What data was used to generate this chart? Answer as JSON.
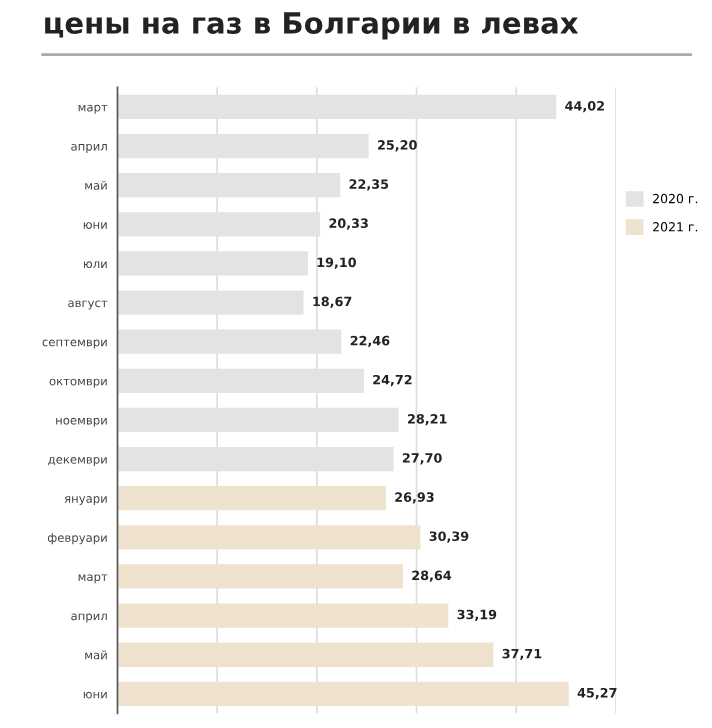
{
  "chart_data": {
    "type": "bar",
    "orientation": "horizontal",
    "title": "цены на газ в Болгарии в левах",
    "categories": [
      "март",
      "април",
      "май",
      "юни",
      "юли",
      "август",
      "септември",
      "октомври",
      "ноември",
      "декември",
      "януари",
      "февруари",
      "март",
      "април",
      "май",
      "юни"
    ],
    "series": [
      {
        "name": "2020 г.",
        "color": "#e3e3e3",
        "values": [
          44.02,
          25.2,
          22.35,
          20.33,
          19.1,
          18.67,
          22.46,
          24.72,
          28.21,
          27.7,
          null,
          null,
          null,
          null,
          null,
          null
        ],
        "value_labels": [
          "44,02",
          "25,20",
          "22,35",
          "20,33",
          "19,10",
          "18,67",
          "22,46",
          "24,72",
          "28,21",
          "27,70",
          null,
          null,
          null,
          null,
          null,
          null
        ]
      },
      {
        "name": "2021 г.",
        "color": "#efe2cf",
        "values": [
          null,
          null,
          null,
          null,
          null,
          null,
          null,
          null,
          null,
          null,
          26.93,
          30.39,
          28.64,
          33.19,
          37.71,
          45.27
        ],
        "value_labels": [
          null,
          null,
          null,
          null,
          null,
          null,
          null,
          null,
          null,
          null,
          "26,93",
          "30,39",
          "28,64",
          "33,19",
          "37,71",
          "45,27"
        ]
      }
    ],
    "xlim": [
      0,
      50
    ],
    "xticks": [
      {
        "value": 0,
        "label": null
      },
      {
        "value": 10,
        "label": null
      },
      {
        "value": 20,
        "label": null
      },
      {
        "value": 30,
        "label": null
      },
      {
        "value": 40,
        "label": null
      },
      {
        "value": 50,
        "label": null
      }
    ],
    "grid": "x",
    "legend": "right",
    "tick_labels": "y"
  }
}
